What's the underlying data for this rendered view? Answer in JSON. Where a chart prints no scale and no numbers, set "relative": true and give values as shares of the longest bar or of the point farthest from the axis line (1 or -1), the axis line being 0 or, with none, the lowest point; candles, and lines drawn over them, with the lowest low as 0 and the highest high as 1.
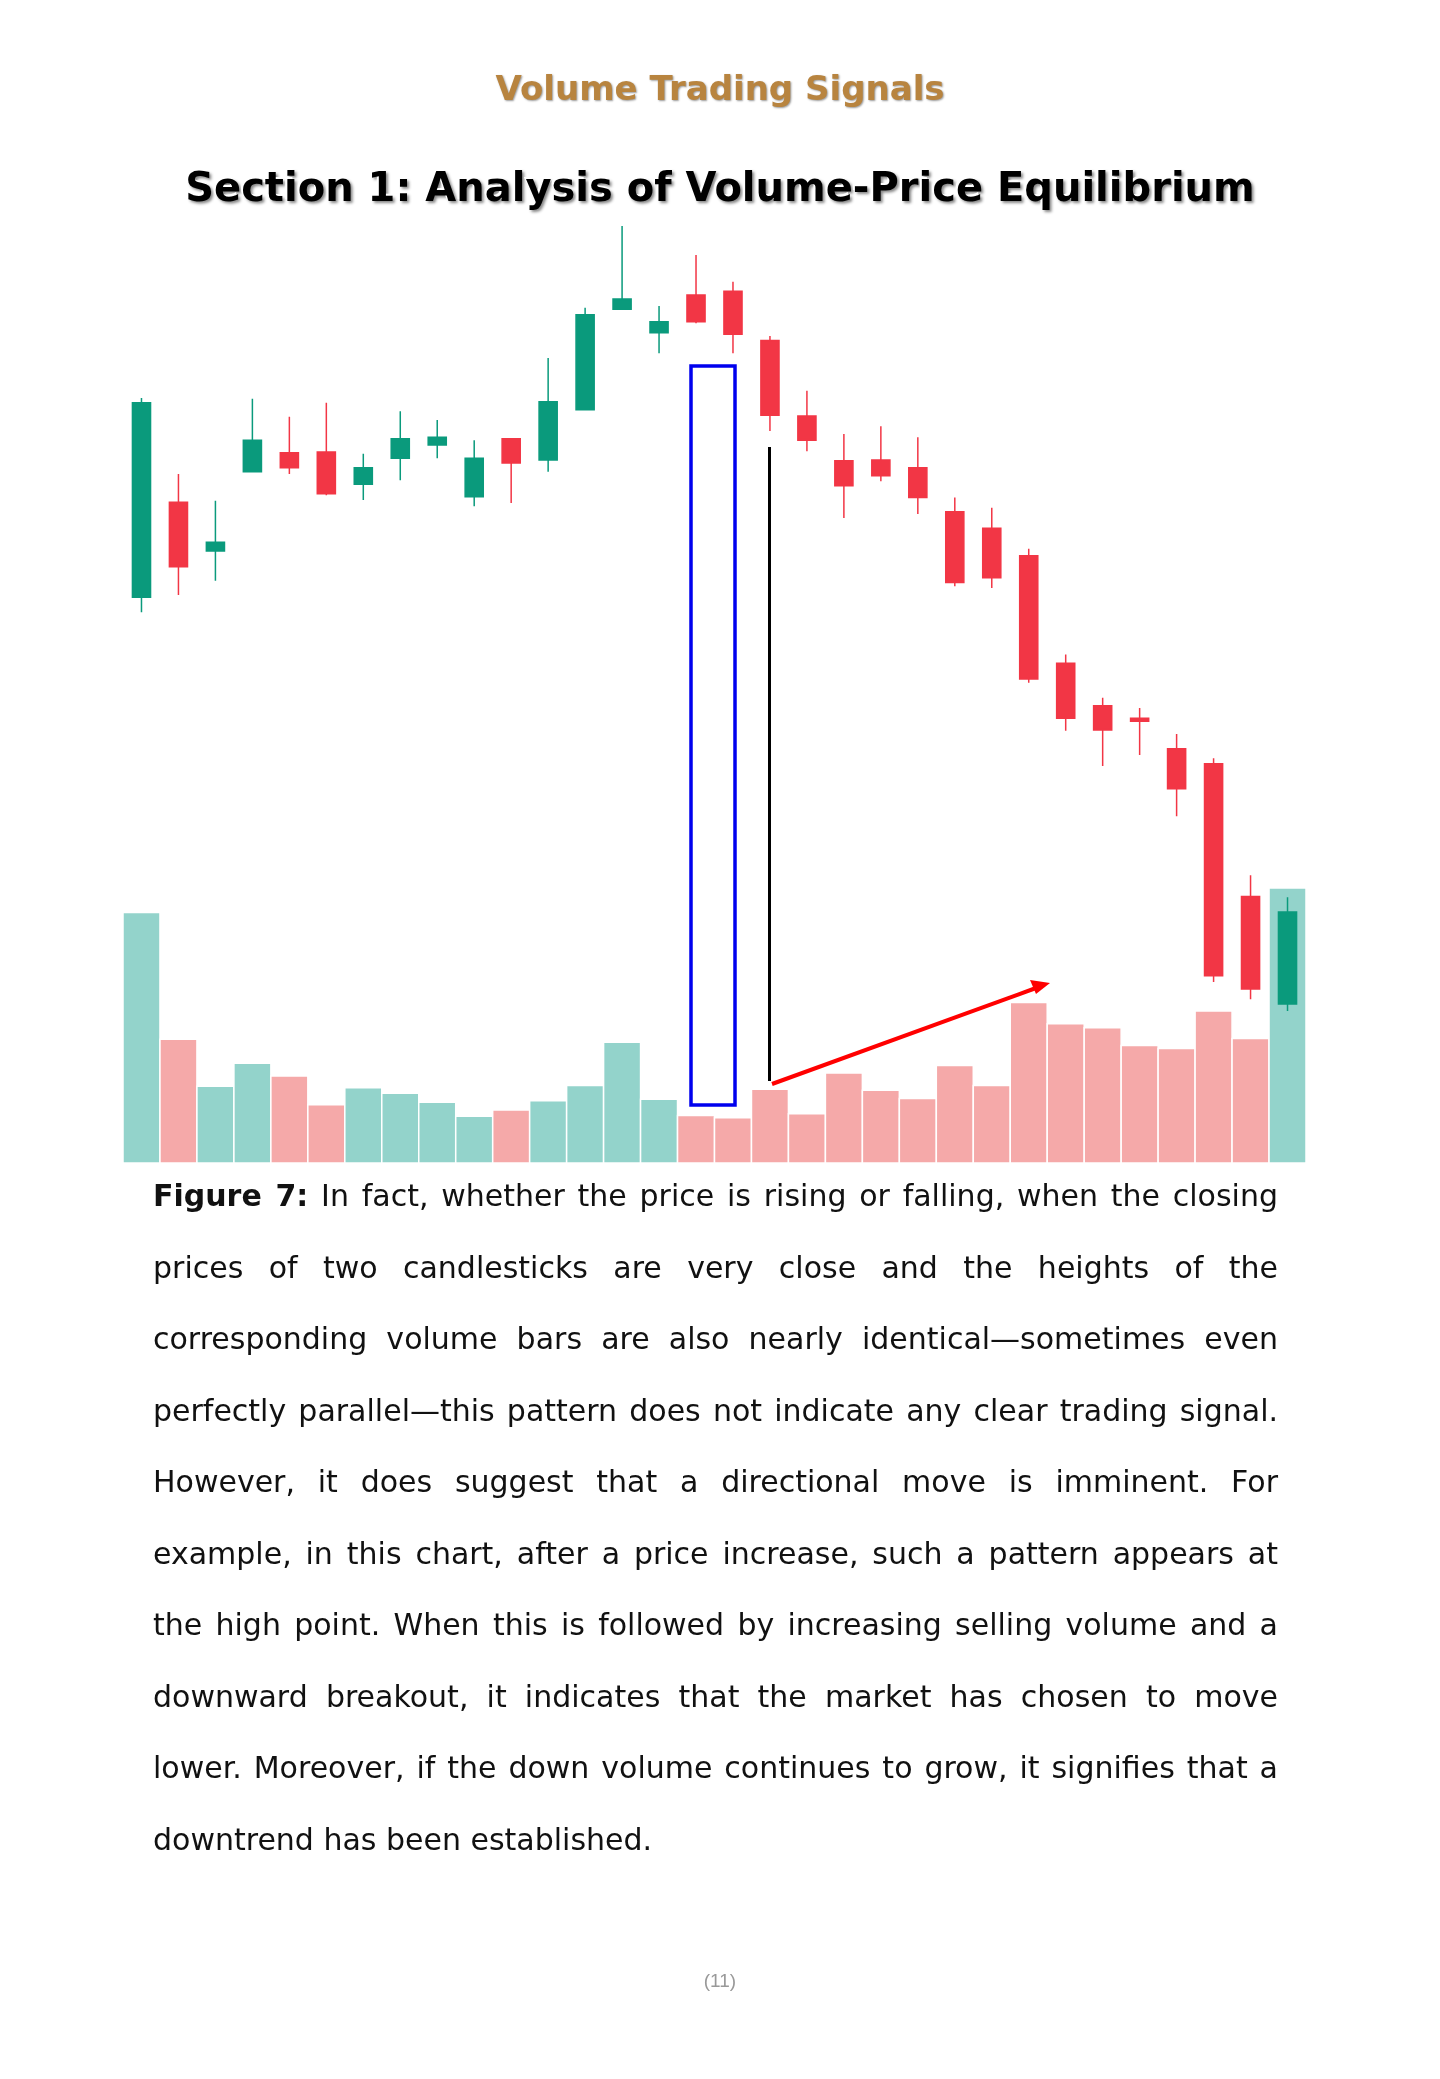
{
  "chart_data": [
    {
      "type": "candlestick",
      "title": "Volume Trading Signals",
      "subtitle": "Section 1: Analysis of Volume-Price Equilibrium",
      "relative": true,
      "categories": [
        null,
        null,
        null,
        null,
        null,
        null,
        null,
        null,
        null,
        null,
        null,
        null,
        null,
        null,
        null,
        null,
        null,
        null,
        null,
        null,
        null,
        null,
        null,
        null,
        null,
        null,
        null,
        null,
        null,
        null,
        null,
        null
      ],
      "ohlc": [
        [
          0.527,
          0.781,
          0.508,
          0.775
        ],
        [
          0.648,
          0.684,
          0.53,
          0.566
        ],
        [
          0.586,
          0.65,
          0.548,
          0.597
        ],
        [
          0.687,
          0.78,
          0.687,
          0.727
        ],
        [
          0.711,
          0.757,
          0.684,
          0.692
        ],
        [
          0.712,
          0.775,
          0.657,
          0.659
        ],
        [
          0.671,
          0.71,
          0.651,
          0.692
        ],
        [
          0.704,
          0.764,
          0.676,
          0.729
        ],
        [
          0.721,
          0.753,
          0.704,
          0.731
        ],
        [
          0.655,
          0.727,
          0.643,
          0.704
        ],
        [
          0.729,
          0.729,
          0.647,
          0.698
        ],
        [
          0.702,
          0.832,
          0.687,
          0.776
        ],
        [
          0.766,
          0.896,
          0.766,
          0.887
        ],
        [
          0.894,
          1,
          0.894,
          0.907
        ],
        [
          0.864,
          0.898,
          0.838,
          0.878
        ],
        [
          0.912,
          0.963,
          0.876,
          0.878
        ],
        [
          0.917,
          0.929,
          0.838,
          0.862
        ],
        [
          0.854,
          0.86,
          0.739,
          0.759
        ],
        [
          0.758,
          0.79,
          0.713,
          0.727
        ],
        [
          0.701,
          0.735,
          0.628,
          0.669
        ],
        [
          0.702,
          0.745,
          0.675,
          0.682
        ],
        [
          0.692,
          0.731,
          0.633,
          0.654
        ],
        [
          0.636,
          0.654,
          0.541,
          0.546
        ],
        [
          0.615,
          0.641,
          0.539,
          0.552
        ],
        [
          0.58,
          0.589,
          0.418,
          0.423
        ],
        [
          0.443,
          0.454,
          0.357,
          0.373
        ],
        [
          0.389,
          0.399,
          0.312,
          0.358
        ],
        [
          0.373,
          0.386,
          0.326,
          0.369
        ],
        [
          0.334,
          0.353,
          0.248,
          0.283
        ],
        [
          0.315,
          0.322,
          0.037,
          0.045
        ],
        [
          0.146,
          0.173,
          0.015,
          0.028
        ],
        [
          0.009,
          0.145,
          0,
          0.126
        ]
      ],
      "colors": [
        "#0a9a7c",
        "#f23645",
        "#0a9a7c",
        "#0a9a7c",
        "#f23645",
        "#f23645",
        "#0a9a7c",
        "#0a9a7c",
        "#0a9a7c",
        "#0a9a7c",
        "#f23645",
        "#0a9a7c",
        "#0a9a7c",
        "#0a9a7c",
        "#0a9a7c",
        "#f23645",
        "#f23645",
        "#f23645",
        "#f23645",
        "#f23645",
        "#f23645",
        "#f23645",
        "#f23645",
        "#f23645",
        "#f23645",
        "#f23645",
        "#f23645",
        "#f23645",
        "#f23645",
        "#f23645",
        "#f23645",
        "#0a9a7c"
      ],
      "annotations": [
        "Figure 7: In fact, whether the price is rising or falling, when the closing prices of two candlesticks are very close and the heights of the corresponding volume bars are also nearly identical—sometimes even perfectly parallel—this pattern does not indicate any clear trading signal. However, it does suggest that a directional move is imminent. For example, in this chart, after a price increase, such a pattern appears at the high point. When this is followed by increasing selling volume and a downward breakout, it indicates that the market has chosen to move lower. Moreover, if the down volume continues to grow, it signifies that a downtrend has been established.",
        "(11)"
      ]
    },
    {
      "type": "bar",
      "relative": true,
      "categories": [
        null,
        null,
        null,
        null,
        null,
        null,
        null,
        null,
        null,
        null,
        null,
        null,
        null,
        null,
        null,
        null,
        null,
        null,
        null,
        null,
        null,
        null,
        null,
        null,
        null,
        null,
        null,
        null,
        null,
        null,
        null,
        null
      ],
      "values": [
        0.911,
        0.45,
        0.279,
        0.363,
        0.316,
        0.212,
        0.274,
        0.254,
        0.221,
        0.17,
        0.193,
        0.226,
        0.282,
        0.439,
        0.232,
        0.173,
        0.165,
        0.268,
        0.179,
        0.327,
        0.265,
        0.235,
        0.355,
        0.282,
        0.584,
        0.506,
        0.492,
        0.427,
        0.416,
        0.553,
        0.453,
        1
      ],
      "colors": [
        "#93d3cb",
        "#f5a9a9",
        "#93d3cb",
        "#93d3cb",
        "#f5a9a9",
        "#f5a9a9",
        "#93d3cb",
        "#93d3cb",
        "#93d3cb",
        "#93d3cb",
        "#f5a9a9",
        "#93d3cb",
        "#93d3cb",
        "#93d3cb",
        "#93d3cb",
        "#f5a9a9",
        "#f5a9a9",
        "#f5a9a9",
        "#f5a9a9",
        "#f5a9a9",
        "#f5a9a9",
        "#f5a9a9",
        "#f5a9a9",
        "#f5a9a9",
        "#f5a9a9",
        "#f5a9a9",
        "#f5a9a9",
        "#f5a9a9",
        "#f5a9a9",
        "#f5a9a9",
        "#f5a9a9",
        "#93d3cb"
      ]
    }
  ]
}
